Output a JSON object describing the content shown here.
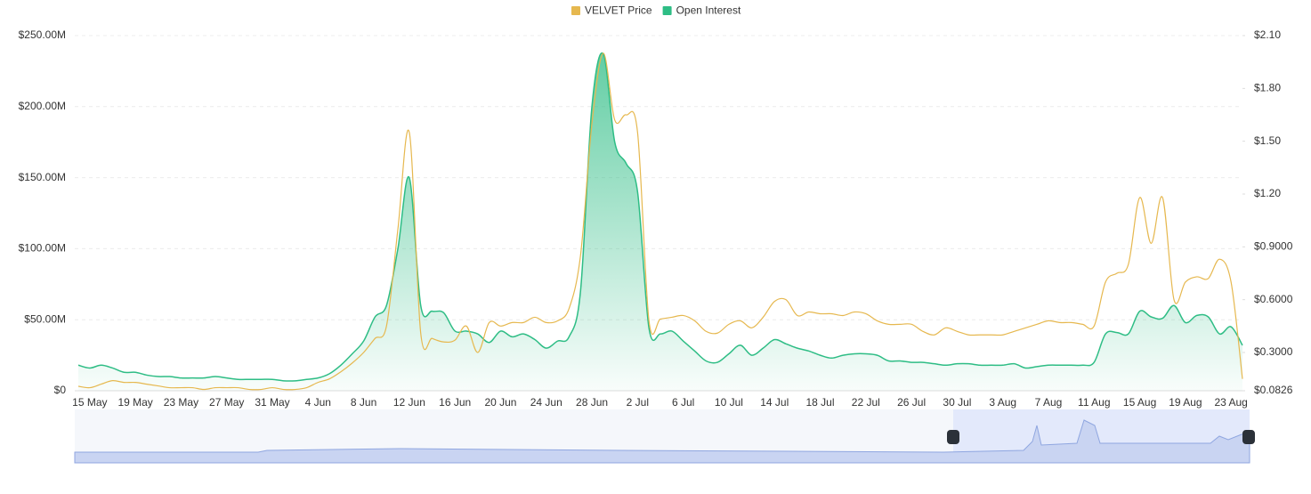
{
  "chart_data": {
    "type": "line",
    "series": [
      {
        "name": "VELVET Price",
        "color": "#e6b84f",
        "axis": "y2",
        "values": [
          0.108,
          0.1,
          0.12,
          0.14,
          0.13,
          0.13,
          0.12,
          0.11,
          0.1,
          0.1,
          0.1,
          0.09,
          0.1,
          0.1,
          0.1,
          0.09,
          0.09,
          0.1,
          0.09,
          0.09,
          0.1,
          0.13,
          0.15,
          0.19,
          0.24,
          0.3,
          0.38,
          0.45,
          1.0,
          1.55,
          0.41,
          0.38,
          0.36,
          0.37,
          0.45,
          0.3,
          0.47,
          0.45,
          0.47,
          0.47,
          0.5,
          0.47,
          0.48,
          0.55,
          0.85,
          1.6,
          2.0,
          1.62,
          1.65,
          1.55,
          0.48,
          0.49,
          0.5,
          0.51,
          0.48,
          0.42,
          0.41,
          0.46,
          0.48,
          0.44,
          0.5,
          0.59,
          0.6,
          0.51,
          0.53,
          0.52,
          0.52,
          0.51,
          0.53,
          0.52,
          0.48,
          0.46,
          0.46,
          0.46,
          0.42,
          0.4,
          0.44,
          0.42,
          0.4,
          0.4,
          0.4,
          0.4,
          0.42,
          0.44,
          0.46,
          0.48,
          0.47,
          0.47,
          0.46,
          0.45,
          0.7,
          0.75,
          0.8,
          1.18,
          0.92,
          1.18,
          0.6,
          0.7,
          0.73,
          0.72,
          0.83,
          0.7,
          0.15
        ]
      },
      {
        "name": "Open Interest",
        "color": "#2ebd85",
        "area": true,
        "values": [
          18000000,
          16000000,
          18000000,
          16000000,
          13000000,
          13000000,
          11000000,
          10000000,
          10000000,
          9000000,
          9000000,
          9000000,
          10000000,
          9000000,
          8000000,
          8000000,
          8000000,
          8000000,
          7000000,
          7000000,
          8000000,
          9000000,
          12000000,
          18000000,
          26000000,
          35000000,
          52000000,
          60000000,
          100000000,
          150000000,
          60000000,
          56000000,
          55000000,
          42000000,
          42000000,
          40000000,
          34000000,
          42000000,
          38000000,
          40000000,
          36000000,
          30000000,
          35000000,
          38000000,
          70000000,
          200000000,
          237000000,
          175000000,
          160000000,
          140000000,
          44000000,
          40000000,
          42000000,
          35000000,
          28000000,
          21000000,
          20000000,
          26000000,
          32000000,
          25000000,
          30000000,
          36000000,
          33000000,
          30000000,
          28000000,
          25000000,
          23000000,
          25000000,
          26000000,
          26000000,
          25000000,
          21000000,
          21000000,
          20000000,
          20000000,
          19000000,
          18000000,
          19000000,
          19000000,
          18000000,
          18000000,
          18000000,
          19000000,
          16000000,
          17000000,
          18000000,
          18000000,
          18000000,
          18000000,
          20000000,
          40000000,
          41000000,
          40000000,
          56000000,
          52000000,
          51000000,
          60000000,
          48000000,
          53000000,
          52000000,
          40000000,
          45000000,
          32000000
        ]
      }
    ],
    "categories": [
      null,
      "15 May",
      null,
      null,
      null,
      "19 May",
      null,
      null,
      null,
      "23 May",
      null,
      null,
      null,
      "27 May",
      null,
      null,
      null,
      "31 May",
      null,
      null,
      null,
      "4 Jun",
      null,
      null,
      null,
      "8 Jun",
      null,
      null,
      null,
      "12 Jun",
      null,
      null,
      null,
      "16 Jun",
      null,
      null,
      null,
      "20 Jun",
      null,
      null,
      null,
      "24 Jun",
      null,
      null,
      null,
      "28 Jun",
      null,
      null,
      null,
      "2 Jul",
      null,
      null,
      null,
      "6 Jul",
      null,
      null,
      null,
      "10 Jul",
      null,
      null,
      null,
      "14 Jul",
      null,
      null,
      null,
      "18 Jul",
      null,
      null,
      null,
      "22 Jul",
      null,
      null,
      null,
      "26 Jul",
      null,
      null,
      null,
      "30 Jul",
      null,
      null,
      null,
      "3 Aug",
      null,
      null,
      null,
      "7 Aug",
      null,
      null,
      null,
      "11 Aug",
      null,
      null,
      null,
      "15 Aug",
      null,
      null,
      null,
      "19 Aug",
      null,
      null,
      null,
      "23 Aug",
      null
    ],
    "ylim": [
      0,
      250000000
    ],
    "yticks": [
      {
        "value": 0,
        "label": "$0"
      },
      {
        "value": 50000000,
        "label": "$50.00M"
      },
      {
        "value": 100000000,
        "label": "$100.00M"
      },
      {
        "value": 150000000,
        "label": "$150.00M"
      },
      {
        "value": 200000000,
        "label": "$200.00M"
      },
      {
        "value": 250000000,
        "label": "$250.00M"
      }
    ],
    "y2lim": [
      0.0826,
      2.1
    ],
    "y2ticks": [
      {
        "value": 0.0826,
        "label": "$0.0826"
      },
      {
        "value": 0.3,
        "label": "$0.3000"
      },
      {
        "value": 0.6,
        "label": "$0.6000"
      },
      {
        "value": 0.9,
        "label": "$0.9000"
      },
      {
        "value": 1.2,
        "label": "$1.20"
      },
      {
        "value": 1.5,
        "label": "$1.50"
      },
      {
        "value": 1.8,
        "label": "$1.80"
      },
      {
        "value": 2.1,
        "label": "$2.10"
      }
    ],
    "grid": true,
    "legend": "top"
  }
}
